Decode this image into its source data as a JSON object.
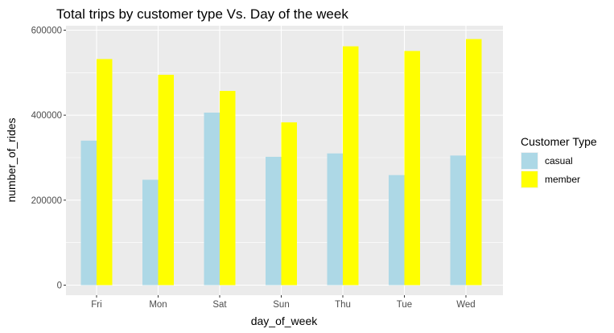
{
  "chart_data": {
    "type": "bar",
    "title": "Total trips by customer type Vs. Day of the week",
    "xlabel": "day_of_week",
    "ylabel": "number_of_rides",
    "categories": [
      "Fri",
      "Mon",
      "Sat",
      "Sun",
      "Thu",
      "Tue",
      "Wed"
    ],
    "series": [
      {
        "name": "casual",
        "color": "#add8e6",
        "values": [
          340000,
          248000,
          406000,
          302000,
          310000,
          259000,
          305000
        ]
      },
      {
        "name": "member",
        "color": "#ffff00",
        "values": [
          532000,
          495000,
          457000,
          383000,
          562000,
          551000,
          579000
        ]
      }
    ],
    "ylim": [
      0,
      620000
    ],
    "yticks": [
      0,
      200000,
      400000,
      600000
    ],
    "ytick_labels": [
      "0",
      "200000",
      "400000",
      "600000"
    ],
    "legend": {
      "title": "Customer Type",
      "position": "right"
    },
    "panel_background": "#ebebeb",
    "grid_color": "#ffffff",
    "grid": true
  }
}
